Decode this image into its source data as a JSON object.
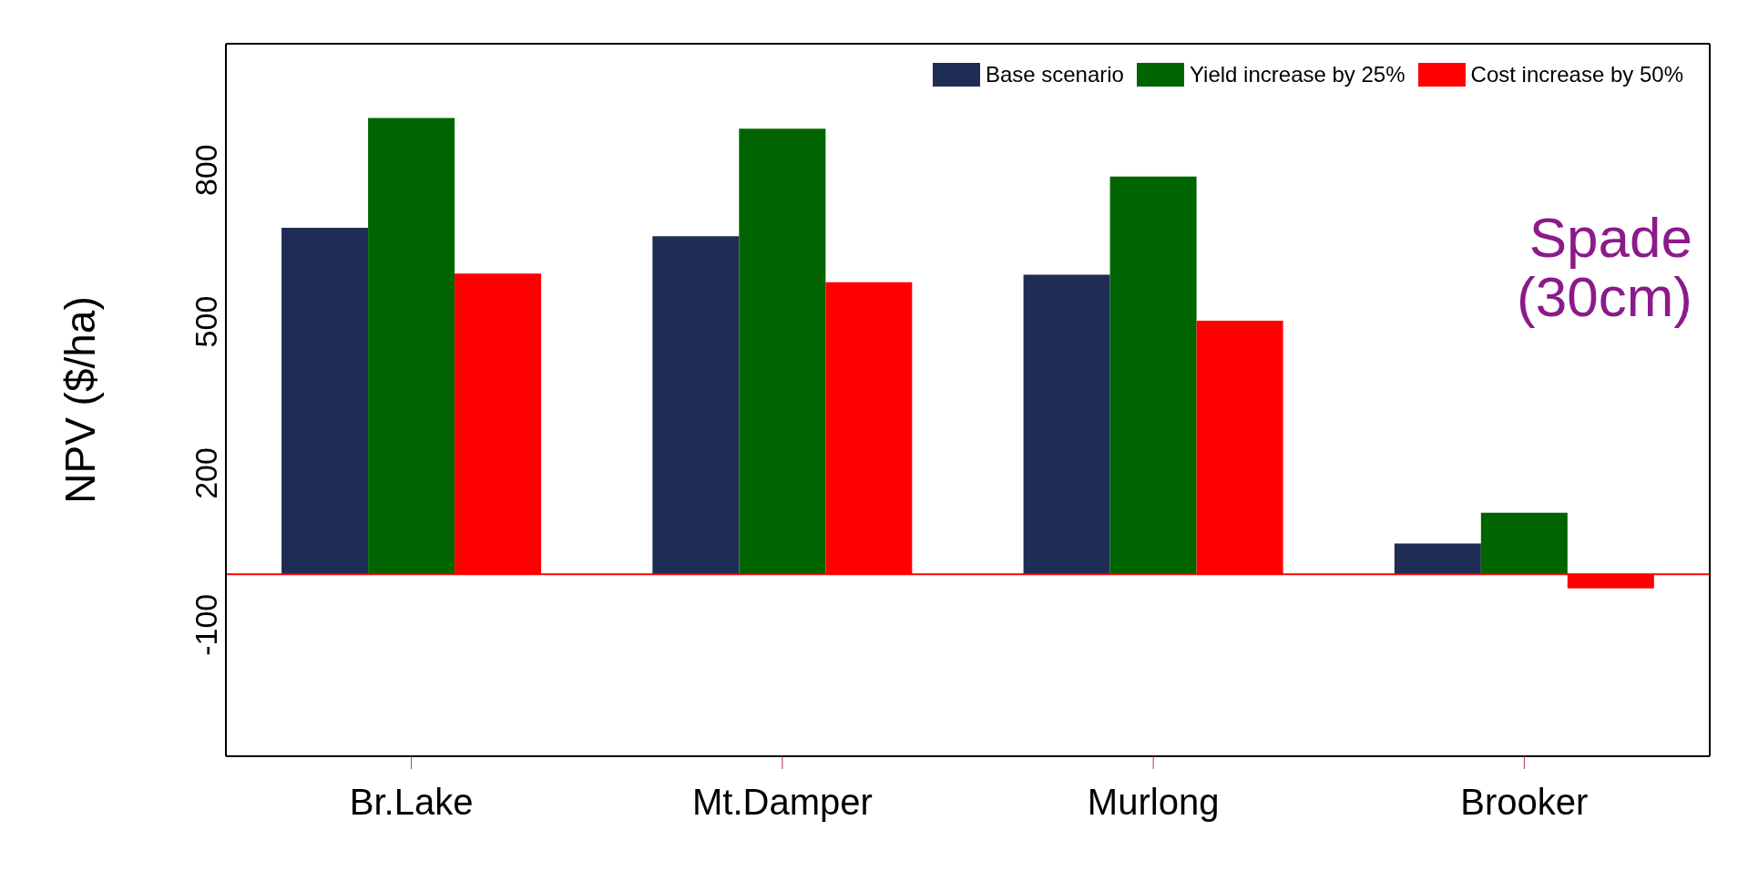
{
  "chart_data": {
    "type": "bar",
    "ylabel": "NPV ($/ha)",
    "categories": [
      "Br.Lake",
      "Mt.Damper",
      "Murlong",
      "Brooker"
    ],
    "series": [
      {
        "name": "Base scenario",
        "color": "#1f2d54",
        "values": [
          686,
          669,
          593,
          61
        ]
      },
      {
        "name": "Yield increase by 25%",
        "color": "#006400",
        "values": [
          903,
          882,
          787,
          122
        ]
      },
      {
        "name": "Cost increase by 50%",
        "color": "#ff0000",
        "values": [
          595,
          578,
          502,
          -28
        ]
      }
    ],
    "ylim": [
      -360,
      1050
    ],
    "yticks": [
      -100,
      200,
      500,
      800
    ],
    "legend": "top right",
    "ref_lines": [
      {
        "axis": "y",
        "value": 0,
        "color": "#ff0000"
      }
    ],
    "annotations": [
      "Spade\n(30cm)"
    ]
  }
}
